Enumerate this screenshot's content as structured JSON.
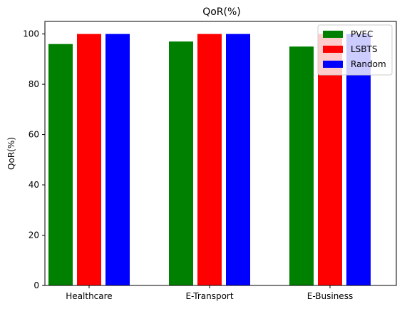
{
  "chart_data": {
    "type": "bar",
    "title": "QoR(%)",
    "xlabel": "",
    "ylabel": "QoR(%)",
    "categories": [
      "Healthcare",
      "E-Transport",
      "E-Business"
    ],
    "series": [
      {
        "name": "PVEC",
        "values": [
          96,
          97,
          95
        ],
        "color": "#008000"
      },
      {
        "name": "LSBTS",
        "values": [
          100,
          100,
          100
        ],
        "color": "#ff0000"
      },
      {
        "name": "Random",
        "values": [
          100,
          100,
          100
        ],
        "color": "#0000ff"
      }
    ],
    "ylim": [
      0,
      105
    ],
    "yticks": [
      0,
      20,
      40,
      60,
      80,
      100
    ],
    "grid": false,
    "legend_position": "top-right"
  }
}
